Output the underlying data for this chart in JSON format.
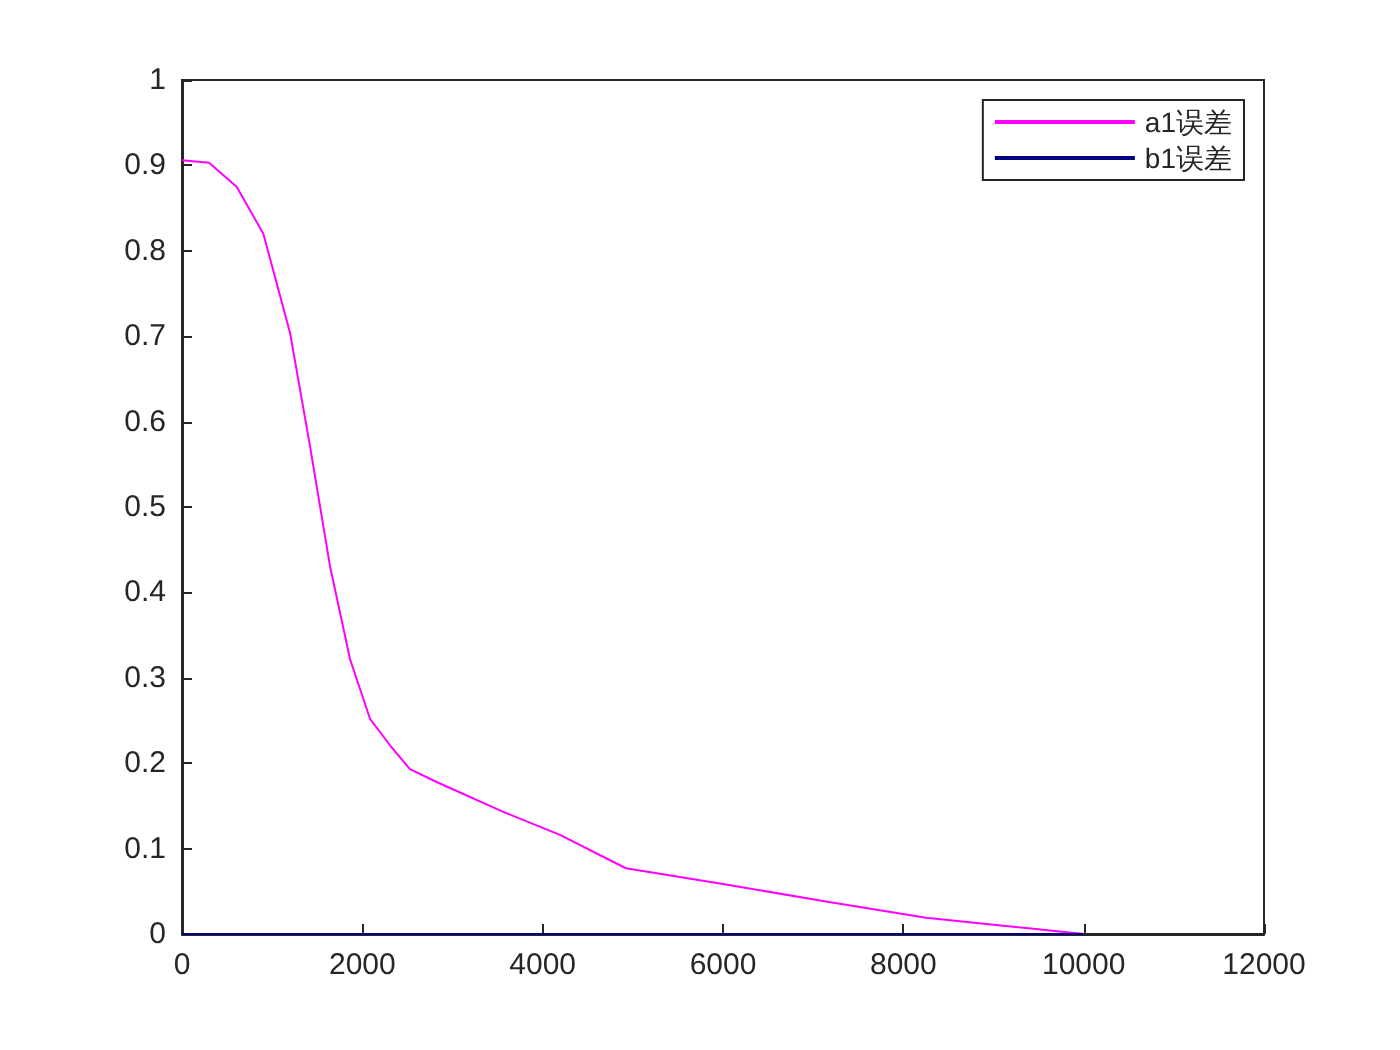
{
  "chart_data": {
    "type": "line",
    "xlim": [
      0,
      12000
    ],
    "xticks": [
      0,
      2000,
      4000,
      6000,
      8000,
      10000,
      12000
    ],
    "ylim": [
      0,
      1
    ],
    "yticks": [
      0,
      0.1,
      0.2,
      0.3,
      0.4,
      0.5,
      0.6,
      0.7,
      0.8,
      0.9,
      1
    ],
    "grid": false,
    "legend": "top right",
    "marker": "none",
    "line_style": "solid",
    "series": [
      {
        "name": "a1误差",
        "color": "#ff00ff",
        "x": [
          0,
          300,
          606,
          902,
          1198,
          1420,
          1641,
          1863,
          2085,
          2307,
          2528,
          2824,
          3564,
          4192,
          4924,
          6033,
          7142,
          8251,
          9360,
          10000
        ],
        "values": [
          0.906,
          0.903,
          0.875,
          0.82,
          0.704,
          0.571,
          0.431,
          0.322,
          0.252,
          0.221,
          0.193,
          0.178,
          0.143,
          0.116,
          0.077,
          0.058,
          0.038,
          0.019,
          0.007,
          0
        ]
      },
      {
        "name": "b1误差",
        "color": "#000080",
        "x": [
          0,
          10000
        ],
        "values": [
          0,
          0
        ]
      }
    ]
  }
}
